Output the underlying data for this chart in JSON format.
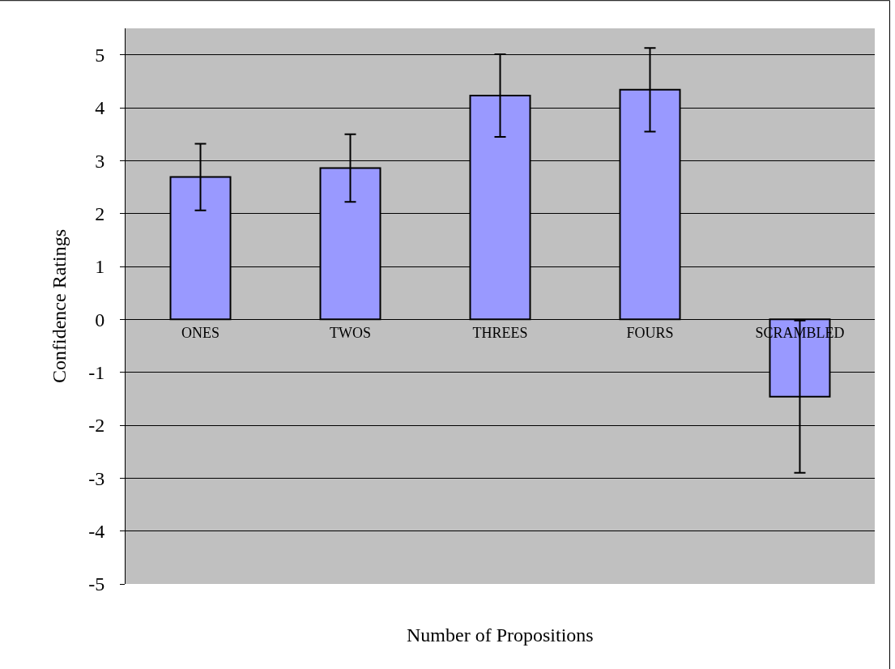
{
  "chart_data": {
    "type": "bar",
    "xlabel": "Number of Propositions",
    "ylabel": "Confidence Ratings",
    "categories": [
      "ONES",
      "TWOS",
      "THREES",
      "FOURS",
      "SCRAMBLED"
    ],
    "values": [
      2.69,
      2.86,
      4.23,
      4.34,
      -1.46
    ],
    "errors": [
      0.63,
      0.64,
      0.78,
      0.79,
      1.44
    ],
    "color": "#9999ff",
    "ylim": [
      -5,
      5.5
    ],
    "yticks": [
      -5,
      -4,
      -3,
      -2,
      -1,
      0,
      1,
      2,
      3,
      4,
      5
    ],
    "grid": "y",
    "legend": false
  }
}
